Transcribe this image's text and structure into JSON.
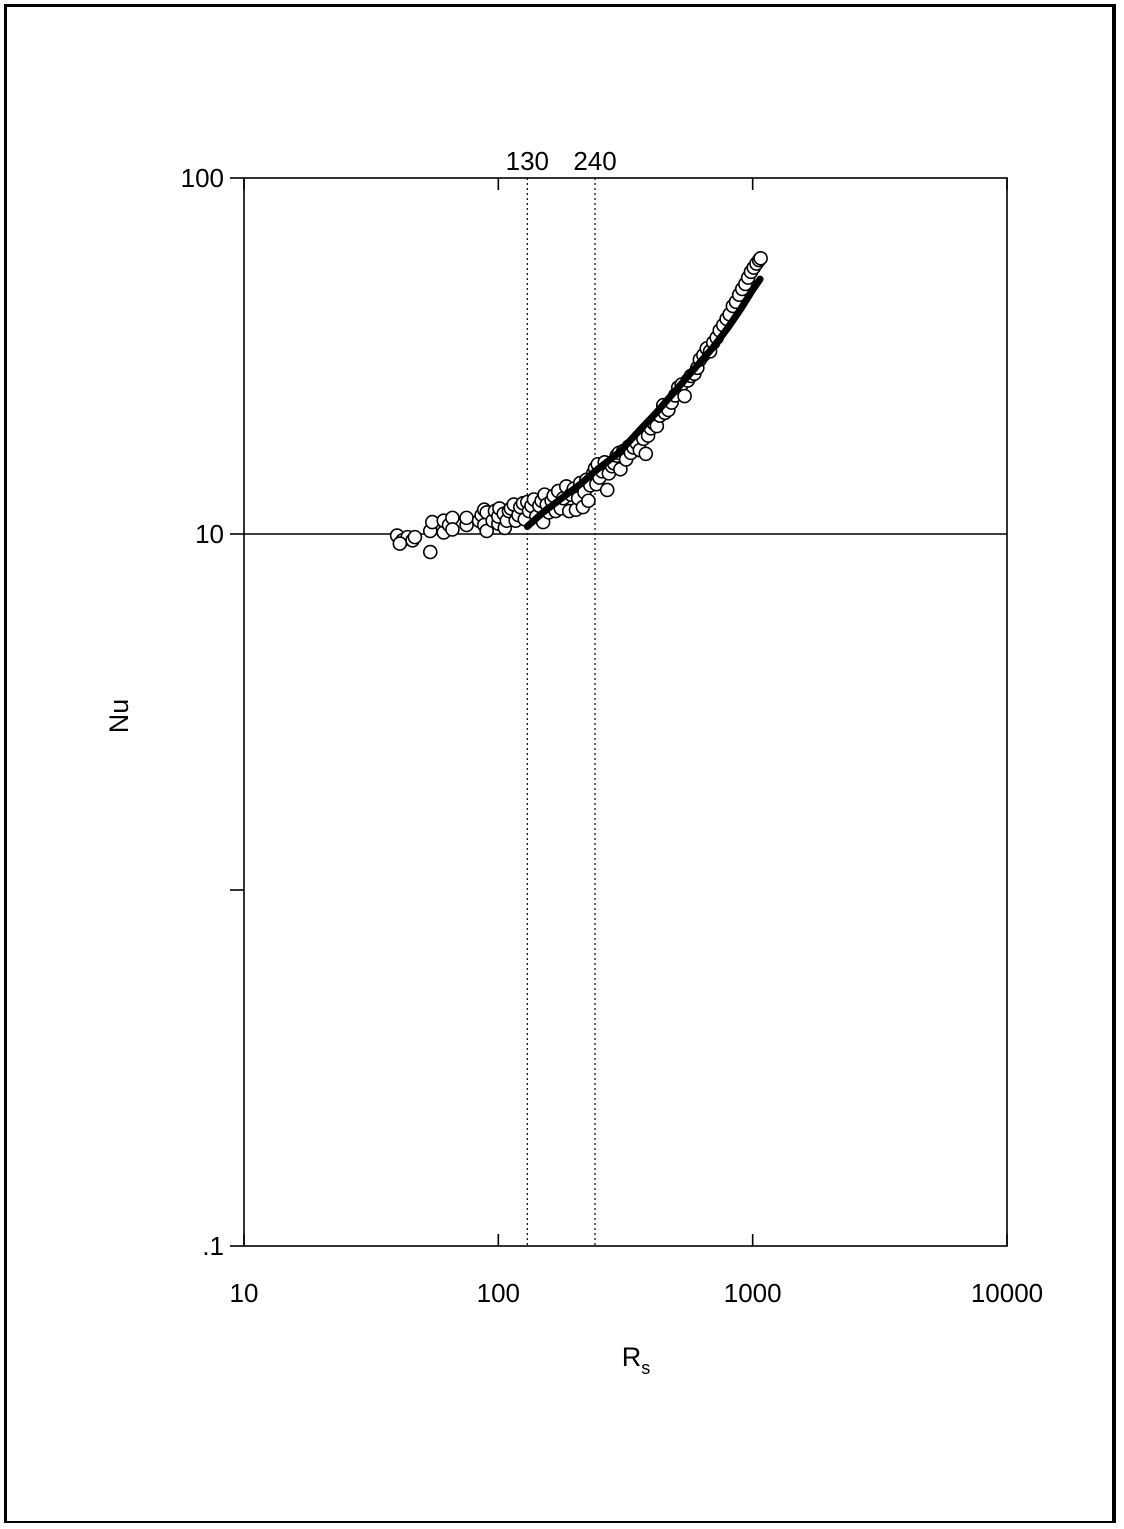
{
  "chart_data": {
    "type": "scatter",
    "title": "",
    "xlabel": "R",
    "xlabel_subscript": "s",
    "ylabel": "Nu",
    "xscale": "log",
    "yscale": "log",
    "xlim": [
      10,
      10000
    ],
    "ylim": [
      0.1,
      100
    ],
    "x_tick_labels": [
      "10",
      "100",
      "1000",
      "10000"
    ],
    "y_tick_labels": [
      ".1",
      "10",
      "100"
    ],
    "y_tick_values": [
      0.1,
      10,
      100
    ],
    "grid": "horizontal line at Nu = 10 only",
    "marker_lines": [
      {
        "x": 130,
        "label": "130",
        "style": "dotted"
      },
      {
        "x": 240,
        "label": "240",
        "style": "dotted"
      }
    ],
    "series": [
      {
        "marker": "open-circle",
        "points": [
          [
            40,
            9.9
          ],
          [
            42,
            9.6
          ],
          [
            44,
            9.8
          ],
          [
            41,
            9.4
          ],
          [
            46,
            9.6
          ],
          [
            47,
            9.8
          ],
          [
            54,
            8.9
          ],
          [
            54,
            10.2
          ],
          [
            55,
            10.8
          ],
          [
            61,
            10.1
          ],
          [
            61,
            10.9
          ],
          [
            64,
            10.6
          ],
          [
            66,
            11.1
          ],
          [
            66,
            10.3
          ],
          [
            75,
            10.6
          ],
          [
            75,
            11.1
          ],
          [
            84,
            10.9
          ],
          [
            86,
            11.3
          ],
          [
            88,
            10.6
          ],
          [
            88,
            11.7
          ],
          [
            90,
            10.2
          ],
          [
            90,
            11.5
          ],
          [
            95,
            10.9
          ],
          [
            97,
            11.6
          ],
          [
            100,
            10.7
          ],
          [
            100,
            11.2
          ],
          [
            101,
            11.8
          ],
          [
            105,
            11.4
          ],
          [
            106,
            10.4
          ],
          [
            108,
            10.9
          ],
          [
            110,
            11.6
          ],
          [
            112,
            11.8
          ],
          [
            115,
            12.1
          ],
          [
            117,
            10.9
          ],
          [
            120,
            11.3
          ],
          [
            122,
            11.9
          ],
          [
            125,
            12.2
          ],
          [
            127,
            11.0
          ],
          [
            130,
            12.3
          ],
          [
            132,
            11.6
          ],
          [
            135,
            12.0
          ],
          [
            138,
            12.5
          ],
          [
            141,
            11.2
          ],
          [
            145,
            12.0
          ],
          [
            148,
            12.4
          ],
          [
            150,
            10.8
          ],
          [
            152,
            12.9
          ],
          [
            155,
            12.1
          ],
          [
            158,
            11.5
          ],
          [
            162,
            12.4
          ],
          [
            165,
            12.8
          ],
          [
            168,
            11.6
          ],
          [
            172,
            13.2
          ],
          [
            176,
            11.8
          ],
          [
            180,
            12.6
          ],
          [
            185,
            13.6
          ],
          [
            190,
            11.6
          ],
          [
            193,
            12.9
          ],
          [
            198,
            13.4
          ],
          [
            202,
            11.7
          ],
          [
            206,
            12.6
          ],
          [
            210,
            13.9
          ],
          [
            215,
            11.9
          ],
          [
            218,
            13.1
          ],
          [
            222,
            14.2
          ],
          [
            226,
            12.4
          ],
          [
            230,
            13.7
          ],
          [
            236,
            14.8
          ],
          [
            240,
            15.3
          ],
          [
            243,
            13.8
          ],
          [
            246,
            15.7
          ],
          [
            250,
            14.4
          ],
          [
            256,
            15.0
          ],
          [
            262,
            15.9
          ],
          [
            268,
            13.3
          ],
          [
            272,
            14.8
          ],
          [
            280,
            15.5
          ],
          [
            285,
            15.8
          ],
          [
            292,
            16.6
          ],
          [
            298,
            16.9
          ],
          [
            302,
            15.2
          ],
          [
            310,
            17.1
          ],
          [
            318,
            16.2
          ],
          [
            326,
            17.6
          ],
          [
            332,
            16.9
          ],
          [
            340,
            17.5
          ],
          [
            350,
            18.0
          ],
          [
            360,
            17.2
          ],
          [
            372,
            18.5
          ],
          [
            380,
            16.8
          ],
          [
            388,
            18.9
          ],
          [
            398,
            19.8
          ],
          [
            410,
            20.4
          ],
          [
            420,
            20.1
          ],
          [
            432,
            21.5
          ],
          [
            445,
            23.0
          ],
          [
            452,
            21.9
          ],
          [
            466,
            22.3
          ],
          [
            480,
            23.4
          ],
          [
            496,
            24.5
          ],
          [
            510,
            25.8
          ],
          [
            526,
            26.3
          ],
          [
            540,
            24.4
          ],
          [
            556,
            27.0
          ],
          [
            572,
            27.8
          ],
          [
            590,
            28.2
          ],
          [
            606,
            29.3
          ],
          [
            620,
            30.9
          ],
          [
            640,
            31.8
          ],
          [
            660,
            33.2
          ],
          [
            680,
            32.6
          ],
          [
            700,
            34.5
          ],
          [
            722,
            35.6
          ],
          [
            742,
            37.3
          ],
          [
            766,
            38.6
          ],
          [
            790,
            40.2
          ],
          [
            812,
            41.4
          ],
          [
            836,
            43.7
          ],
          [
            860,
            44.9
          ],
          [
            885,
            47.0
          ],
          [
            910,
            48.8
          ],
          [
            936,
            50.4
          ],
          [
            960,
            52.5
          ],
          [
            985,
            54.5
          ],
          [
            1010,
            56.0
          ],
          [
            1035,
            57.5
          ],
          [
            1060,
            58.8
          ],
          [
            1075,
            59.5
          ]
        ]
      },
      {
        "marker": "thick-line",
        "points": [
          [
            130,
            10.5
          ],
          [
            150,
            11.5
          ],
          [
            180,
            12.7
          ],
          [
            210,
            13.8
          ],
          [
            240,
            15.0
          ],
          [
            300,
            17.0
          ],
          [
            360,
            19.6
          ],
          [
            420,
            22.0
          ],
          [
            500,
            25.4
          ],
          [
            600,
            29.5
          ],
          [
            700,
            33.5
          ],
          [
            800,
            38.0
          ],
          [
            900,
            43.0
          ],
          [
            1000,
            48.5
          ],
          [
            1070,
            52.0
          ]
        ]
      }
    ]
  }
}
